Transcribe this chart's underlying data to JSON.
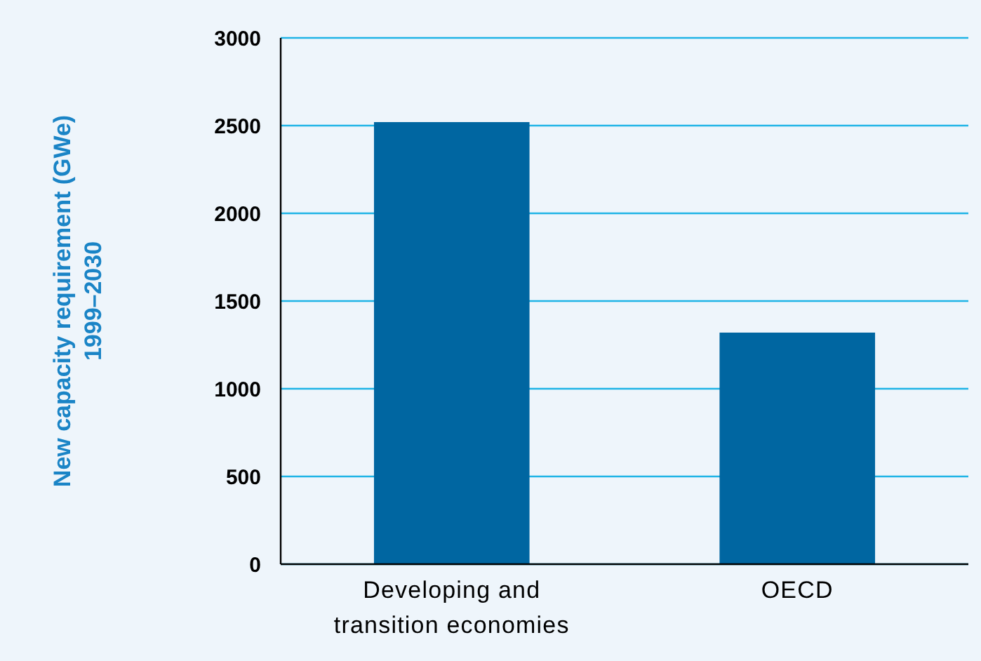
{
  "chart_data": {
    "type": "bar",
    "ylabel": "New capacity requirement (GWe)\n1999–2030",
    "categories": [
      "Developing and transition economies",
      "OECD"
    ],
    "values": [
      2520,
      1320
    ],
    "color": "#0066a1",
    "ylim": [
      0,
      3000
    ],
    "yticks": [
      0,
      500,
      1000,
      1500,
      2000,
      2500,
      3000
    ],
    "grid": "y"
  }
}
